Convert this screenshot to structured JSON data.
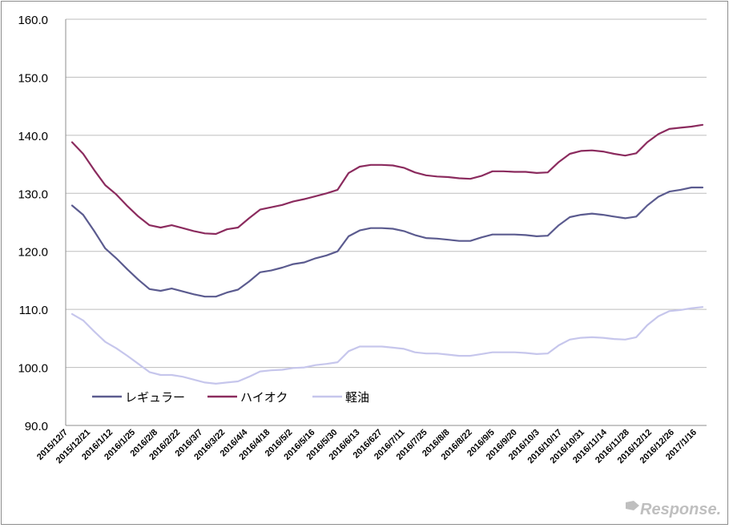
{
  "chart_data": {
    "type": "line",
    "title": "",
    "xlabel": "",
    "ylabel": "",
    "ylim": [
      90,
      160
    ],
    "yticks": [
      "90.0",
      "100.0",
      "110.0",
      "120.0",
      "130.0",
      "140.0",
      "150.0",
      "160.0"
    ],
    "grid": true,
    "legend": "bottom-left",
    "x_tick_labels": [
      "2015/12/7",
      "2015/12/21",
      "2016/1/12",
      "2016/1/25",
      "2016/2/8",
      "2016/2/22",
      "2016/3/7",
      "2016/3/22",
      "2016/4/4",
      "2016/4/18",
      "2016/5/2",
      "2016/5/16",
      "2016/5/30",
      "2016/6/13",
      "2016/627",
      "2016/7/11",
      "2016/7/25",
      "2016/8/8",
      "2016/8/22",
      "2016/9/5",
      "2016/9/20",
      "2016/10/3",
      "2016/10/17",
      "2016/10/31",
      "2016/11/14",
      "2016/11/28",
      "2016/12/12",
      "2016/12/26",
      "2017/1/16"
    ],
    "x": [
      "2015/12/7",
      "2015/12/14",
      "2015/12/21",
      "2015/12/28",
      "2016/1/4",
      "2016/1/12",
      "2016/1/18",
      "2016/1/25",
      "2016/2/1",
      "2016/2/8",
      "2016/2/15",
      "2016/2/22",
      "2016/2/29",
      "2016/3/7",
      "2016/3/14",
      "2016/3/22",
      "2016/3/28",
      "2016/4/4",
      "2016/4/11",
      "2016/4/18",
      "2016/4/25",
      "2016/5/2",
      "2016/5/9",
      "2016/5/16",
      "2016/5/23",
      "2016/5/30",
      "2016/6/6",
      "2016/6/13",
      "2016/6/20",
      "2016/6/27",
      "2016/7/4",
      "2016/7/11",
      "2016/7/19",
      "2016/7/25",
      "2016/8/1",
      "2016/8/8",
      "2016/8/15",
      "2016/8/22",
      "2016/8/29",
      "2016/9/5",
      "2016/9/12",
      "2016/9/20",
      "2016/9/26",
      "2016/10/3",
      "2016/10/11",
      "2016/10/17",
      "2016/10/24",
      "2016/10/31",
      "2016/11/7",
      "2016/11/14",
      "2016/11/21",
      "2016/11/28",
      "2016/12/5",
      "2016/12/12",
      "2016/12/19",
      "2016/12/26",
      "2017/1/10",
      "2017/1/16"
    ],
    "series": [
      {
        "name": "レギュラー",
        "color": "#5b5b8f",
        "values": [
          127.9,
          126.3,
          123.5,
          120.5,
          118.8,
          116.9,
          115.1,
          113.5,
          113.2,
          113.6,
          113.1,
          112.6,
          112.2,
          112.2,
          112.9,
          113.4,
          114.8,
          116.4,
          116.7,
          117.2,
          117.8,
          118.1,
          118.8,
          119.3,
          120.0,
          122.6,
          123.6,
          124.0,
          124.0,
          123.9,
          123.5,
          122.8,
          122.3,
          122.2,
          122.0,
          121.8,
          121.8,
          122.4,
          122.9,
          122.9,
          122.9,
          122.8,
          122.6,
          122.7,
          124.5,
          125.9,
          126.3,
          126.5,
          126.3,
          126.0,
          125.7,
          126.0,
          127.9,
          129.4,
          130.3,
          130.6,
          131.0,
          131.0
        ]
      },
      {
        "name": "ハイオク",
        "color": "#8b2b5e",
        "values": [
          138.8,
          136.8,
          134.0,
          131.4,
          129.8,
          127.8,
          126.0,
          124.5,
          124.1,
          124.5,
          124.0,
          123.5,
          123.1,
          123.0,
          123.8,
          124.1,
          125.7,
          127.2,
          127.6,
          128.0,
          128.6,
          129.0,
          129.5,
          130.0,
          130.6,
          133.5,
          134.6,
          134.9,
          134.9,
          134.8,
          134.4,
          133.6,
          133.1,
          132.9,
          132.8,
          132.6,
          132.5,
          133.0,
          133.8,
          133.8,
          133.7,
          133.7,
          133.5,
          133.6,
          135.4,
          136.8,
          137.3,
          137.4,
          137.2,
          136.8,
          136.5,
          136.9,
          138.8,
          140.2,
          141.1,
          141.3,
          141.5,
          141.8
        ]
      },
      {
        "name": "軽油",
        "color": "#c6c6ec",
        "values": [
          109.2,
          108.1,
          106.2,
          104.4,
          103.3,
          102.0,
          100.6,
          99.2,
          98.7,
          98.7,
          98.4,
          97.9,
          97.4,
          97.2,
          97.4,
          97.6,
          98.4,
          99.3,
          99.5,
          99.6,
          99.9,
          100.0,
          100.4,
          100.6,
          100.9,
          102.8,
          103.6,
          103.6,
          103.6,
          103.4,
          103.2,
          102.6,
          102.4,
          102.4,
          102.2,
          102.0,
          102.0,
          102.3,
          102.6,
          102.6,
          102.6,
          102.5,
          102.3,
          102.4,
          103.8,
          104.8,
          105.1,
          105.2,
          105.1,
          104.9,
          104.8,
          105.2,
          107.3,
          108.8,
          109.7,
          109.9,
          110.2,
          110.4
        ]
      }
    ]
  },
  "watermark": {
    "text": "Response."
  }
}
